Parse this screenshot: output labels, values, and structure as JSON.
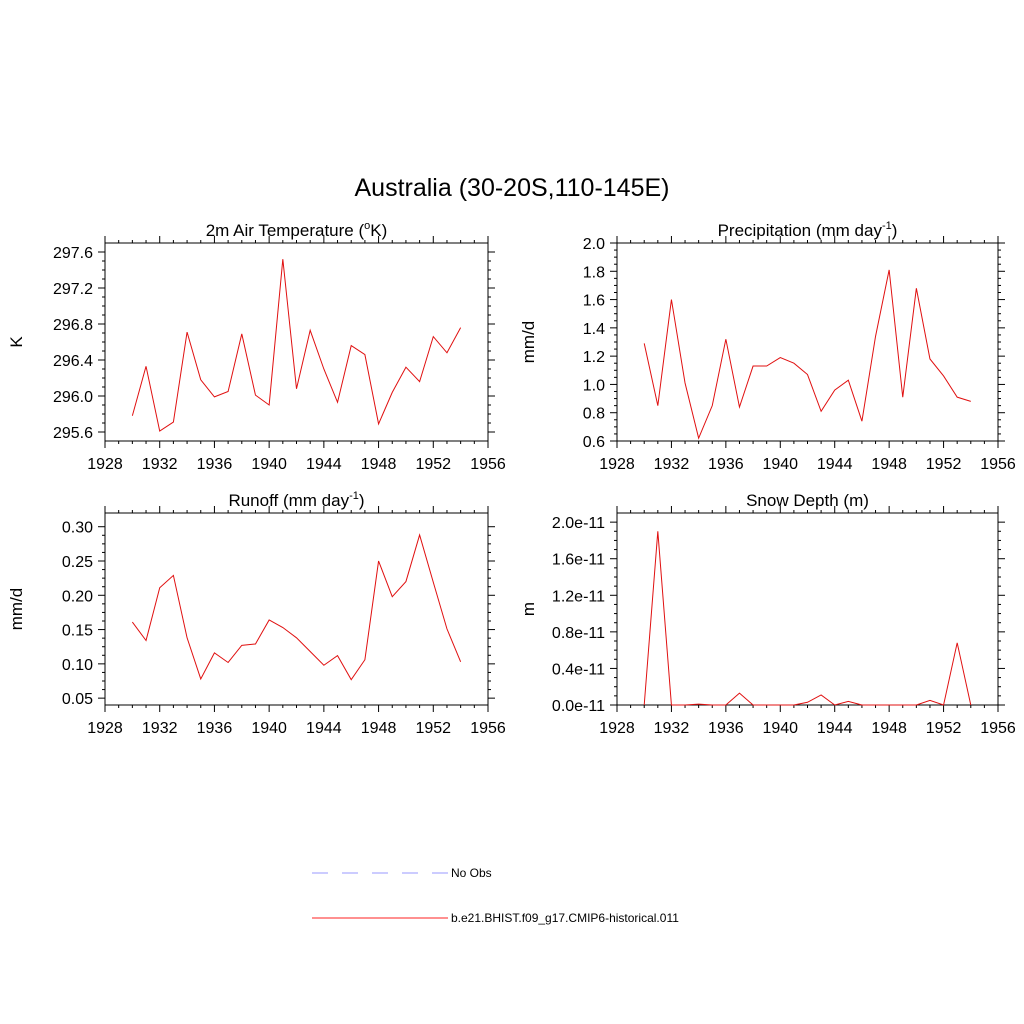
{
  "title": "Australia (30-20S,110-145E)",
  "legend": [
    {
      "label": "No Obs",
      "color": "#9a9aff",
      "dash": true
    },
    {
      "label": "b.e21.BHIST.f09_g17.CMIP6-historical.011",
      "color": "#ff2020",
      "dash": false
    }
  ],
  "line_color": "#e01010",
  "chart_data": [
    {
      "type": "line",
      "title_main": "2m Air Temperature (",
      "title_sup": "o",
      "title_end": "K)",
      "ylabel": "K",
      "xlim": [
        1928,
        1956
      ],
      "ylim": [
        295.5,
        297.7
      ],
      "x_ticks": [
        "1928",
        "1932",
        "1936",
        "1940",
        "1944",
        "1948",
        "1952",
        "1956"
      ],
      "y_ticks": [
        "295.6",
        "296.0",
        "296.4",
        "296.8",
        "297.2",
        "297.6"
      ],
      "x": [
        1930,
        1931,
        1932,
        1933,
        1934,
        1935,
        1936,
        1937,
        1938,
        1939,
        1940,
        1941,
        1942,
        1943,
        1944,
        1945,
        1946,
        1947,
        1948,
        1949,
        1950,
        1951,
        1952,
        1953,
        1954
      ],
      "series": [
        {
          "values": [
            295.78,
            296.33,
            295.61,
            295.71,
            296.71,
            296.18,
            295.99,
            296.05,
            296.69,
            296.01,
            295.9,
            297.52,
            296.08,
            296.73,
            296.3,
            295.93,
            296.56,
            296.46,
            295.69,
            296.04,
            296.32,
            296.16,
            296.66,
            296.48,
            296.76
          ]
        }
      ]
    },
    {
      "type": "line",
      "title_main": "Precipitation (mm day",
      "title_sup": "-1",
      "title_end": ")",
      "ylabel": "mm/d",
      "xlim": [
        1928,
        1956
      ],
      "ylim": [
        0.6,
        2.0
      ],
      "x_ticks": [
        "1928",
        "1932",
        "1936",
        "1940",
        "1944",
        "1948",
        "1952",
        "1956"
      ],
      "y_ticks": [
        "0.6",
        "0.8",
        "1.0",
        "1.2",
        "1.4",
        "1.6",
        "1.8",
        "2.0"
      ],
      "x": [
        1930,
        1931,
        1932,
        1933,
        1934,
        1935,
        1936,
        1937,
        1938,
        1939,
        1940,
        1941,
        1942,
        1943,
        1944,
        1945,
        1946,
        1947,
        1948,
        1949,
        1950,
        1951,
        1952,
        1953,
        1954
      ],
      "series": [
        {
          "values": [
            1.29,
            0.85,
            1.6,
            1.01,
            0.62,
            0.85,
            1.32,
            0.84,
            1.13,
            1.13,
            1.19,
            1.15,
            1.07,
            0.81,
            0.96,
            1.03,
            0.74,
            1.34,
            1.81,
            0.91,
            1.68,
            1.18,
            1.06,
            0.91,
            0.88
          ]
        }
      ]
    },
    {
      "type": "line",
      "title_main": "Runoff (mm day",
      "title_sup": "-1",
      "title_end": ")",
      "ylabel": "mm/d",
      "xlim": [
        1928,
        1956
      ],
      "ylim": [
        0.04,
        0.32
      ],
      "x_ticks": [
        "1928",
        "1932",
        "1936",
        "1940",
        "1944",
        "1948",
        "1952",
        "1956"
      ],
      "y_ticks": [
        "0.05",
        "0.10",
        "0.15",
        "0.20",
        "0.25",
        "0.30"
      ],
      "x": [
        1930,
        1931,
        1932,
        1933,
        1934,
        1935,
        1936,
        1937,
        1938,
        1939,
        1940,
        1941,
        1942,
        1943,
        1944,
        1945,
        1946,
        1947,
        1948,
        1949,
        1950,
        1951,
        1952,
        1953,
        1954
      ],
      "series": [
        {
          "values": [
            0.161,
            0.134,
            0.211,
            0.229,
            0.138,
            0.078,
            0.116,
            0.102,
            0.127,
            0.129,
            0.164,
            0.153,
            0.138,
            0.118,
            0.098,
            0.112,
            0.077,
            0.106,
            0.25,
            0.198,
            0.22,
            0.288,
            0.219,
            0.151,
            0.103
          ]
        }
      ]
    },
    {
      "type": "line",
      "title_main": "Snow Depth (m)",
      "title_sup": "",
      "title_end": "",
      "ylabel": "m",
      "xlim": [
        1928,
        1956
      ],
      "ylim": [
        0,
        2.1e-11
      ],
      "x_ticks": [
        "1928",
        "1932",
        "1936",
        "1940",
        "1944",
        "1948",
        "1952",
        "1956"
      ],
      "y_ticks": [
        "0.0e-11",
        "0.4e-11",
        "0.8e-11",
        "1.2e-11",
        "1.6e-11",
        "2.0e-11"
      ],
      "x": [
        1930,
        1931,
        1932,
        1933,
        1934,
        1935,
        1936,
        1937,
        1938,
        1939,
        1940,
        1941,
        1942,
        1943,
        1944,
        1945,
        1946,
        1947,
        1948,
        1949,
        1950,
        1951,
        1952,
        1953,
        1954
      ],
      "series": [
        {
          "values": [
            0,
            1.9e-11,
            0,
            0,
            1e-13,
            0,
            0,
            1.3e-12,
            0,
            0,
            0,
            0,
            3e-13,
            1.1e-12,
            0,
            4e-13,
            0,
            0,
            0,
            0,
            0,
            5e-13,
            0,
            6.8e-12,
            0
          ]
        }
      ]
    }
  ]
}
